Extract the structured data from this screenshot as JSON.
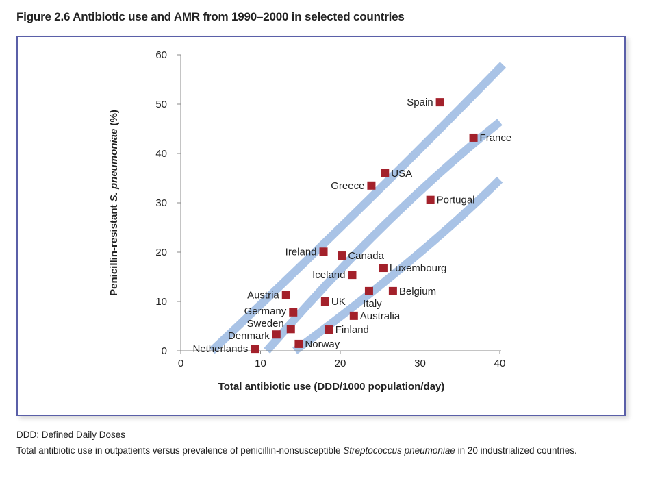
{
  "title": "Figure 2.6 Antibiotic use and AMR from 1990–2000 in selected countries",
  "notes": {
    "abbrev": "DDD: Defined Daily Doses",
    "caption_pre": "Total antibiotic use in outpatients versus prevalence of penicillin-nonsusceptible ",
    "caption_italic": "Streptococcus pneumoniae",
    "caption_post": " in 20 industrialized countries."
  },
  "chart_data": {
    "type": "scatter",
    "xlabel": "Total antibiotic use (DDD/1000 population/day)",
    "ylabel_pre": "Penicillin-resistant ",
    "ylabel_italic": "S. pneumoniae",
    "ylabel_post": " (%)",
    "xlim": [
      0,
      40
    ],
    "ylim": [
      0,
      60
    ],
    "xticks": [
      0,
      10,
      20,
      30,
      40
    ],
    "yticks": [
      0,
      10,
      20,
      30,
      40,
      50,
      60
    ],
    "grid": false,
    "marker_color": "#a3212b",
    "band_color": "#a9c3e6",
    "points": [
      {
        "label": "Spain",
        "x": 32.5,
        "y": 50.4,
        "pos": "left"
      },
      {
        "label": "France",
        "x": 36.7,
        "y": 43.2,
        "pos": "right"
      },
      {
        "label": "USA",
        "x": 25.6,
        "y": 36.0,
        "pos": "right"
      },
      {
        "label": "Greece",
        "x": 23.9,
        "y": 33.5,
        "pos": "left"
      },
      {
        "label": "Portugal",
        "x": 31.3,
        "y": 30.6,
        "pos": "right"
      },
      {
        "label": "Ireland",
        "x": 17.9,
        "y": 20.1,
        "pos": "left"
      },
      {
        "label": "Canada",
        "x": 20.2,
        "y": 19.3,
        "pos": "right"
      },
      {
        "label": "Luxembourg",
        "x": 25.4,
        "y": 16.8,
        "pos": "right"
      },
      {
        "label": "Iceland",
        "x": 21.5,
        "y": 15.4,
        "pos": "left"
      },
      {
        "label": "Italy",
        "x": 23.6,
        "y": 12.1,
        "pos": "below"
      },
      {
        "label": "Belgium",
        "x": 26.6,
        "y": 12.1,
        "pos": "right"
      },
      {
        "label": "Austria",
        "x": 13.2,
        "y": 11.3,
        "pos": "left"
      },
      {
        "label": "UK",
        "x": 18.1,
        "y": 10.0,
        "pos": "right"
      },
      {
        "label": "Germany",
        "x": 14.1,
        "y": 7.8,
        "pos": "left"
      },
      {
        "label": "Australia",
        "x": 21.7,
        "y": 7.1,
        "pos": "right"
      },
      {
        "label": "Sweden",
        "x": 13.8,
        "y": 4.4,
        "pos": "left"
      },
      {
        "label": "Finland",
        "x": 18.6,
        "y": 4.3,
        "pos": "right"
      },
      {
        "label": "Denmark",
        "x": 12.0,
        "y": 3.3,
        "pos": "left"
      },
      {
        "label": "Norway",
        "x": 14.8,
        "y": 1.4,
        "pos": "right"
      },
      {
        "label": "Netherlands",
        "x": 9.3,
        "y": 0.4,
        "pos": "left"
      }
    ],
    "bands": [
      [
        [
          3.9,
          0
        ],
        [
          22.8,
          29.4
        ],
        [
          40.4,
          58
        ]
      ],
      [
        [
          10.8,
          0
        ],
        [
          25.4,
          25.3
        ],
        [
          40,
          46.4
        ]
      ],
      [
        [
          14.3,
          0
        ],
        [
          28.8,
          18.3
        ],
        [
          40,
          34.7
        ]
      ]
    ]
  }
}
